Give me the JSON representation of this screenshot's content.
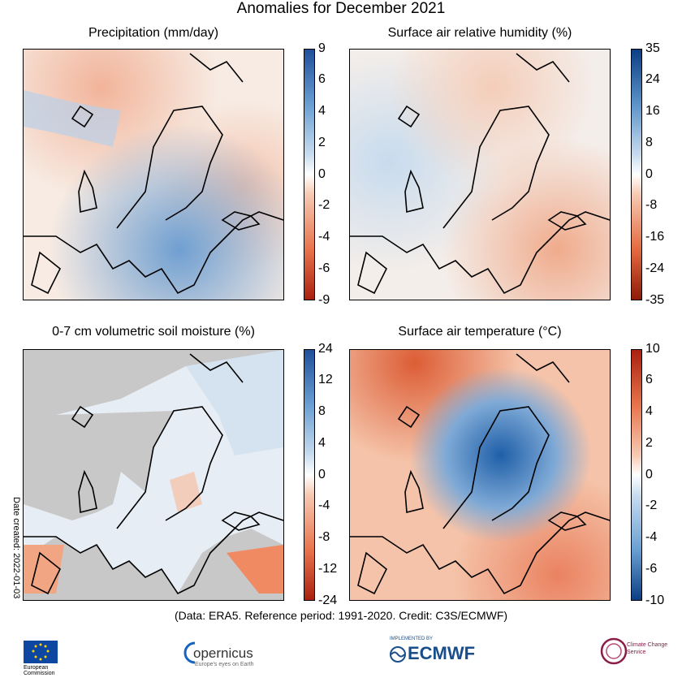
{
  "title": "Anomalies for December 2021",
  "panels": [
    {
      "title": "Precipitation (mm/day)",
      "ticks": [
        "9",
        "6",
        "4",
        "2",
        "0",
        "-2",
        "-4",
        "-6",
        "-9"
      ],
      "palette": "blue-top"
    },
    {
      "title": "Surface air relative humidity (%)",
      "ticks": [
        "35",
        "24",
        "16",
        "8",
        "0",
        "-8",
        "-16",
        "-24",
        "-35"
      ],
      "palette": "blue-top"
    },
    {
      "title": "0-7 cm volumetric soil moisture (%)",
      "ticks": [
        "24",
        "12",
        "8",
        "4",
        "0",
        "-4",
        "-8",
        "-12",
        "-24"
      ],
      "palette": "blue-top"
    },
    {
      "title": "Surface air temperature (°C)",
      "ticks": [
        "10",
        "6",
        "4",
        "2",
        "0",
        "-2",
        "-4",
        "-6",
        "-10"
      ],
      "palette": "red-top"
    }
  ],
  "footer": "(Data: ERA5.   Reference period: 1991-2020.   Credit: C3S/ECMWF)",
  "date_created": "Date created: 2022-01-03",
  "logos": {
    "eu": "European Commission",
    "copernicus": "opernicus",
    "copernicus_sub": "Europe's eyes on Earth",
    "ecmwf_top": "IMPLEMENTED BY",
    "ecmwf": "ECMWF",
    "c3s": "Climate Change Service"
  },
  "colors": {
    "blue": "#1f5fa8",
    "red": "#d94a2a",
    "ocean": "#e9f0f7",
    "land_gray": "#c8c8c8"
  }
}
